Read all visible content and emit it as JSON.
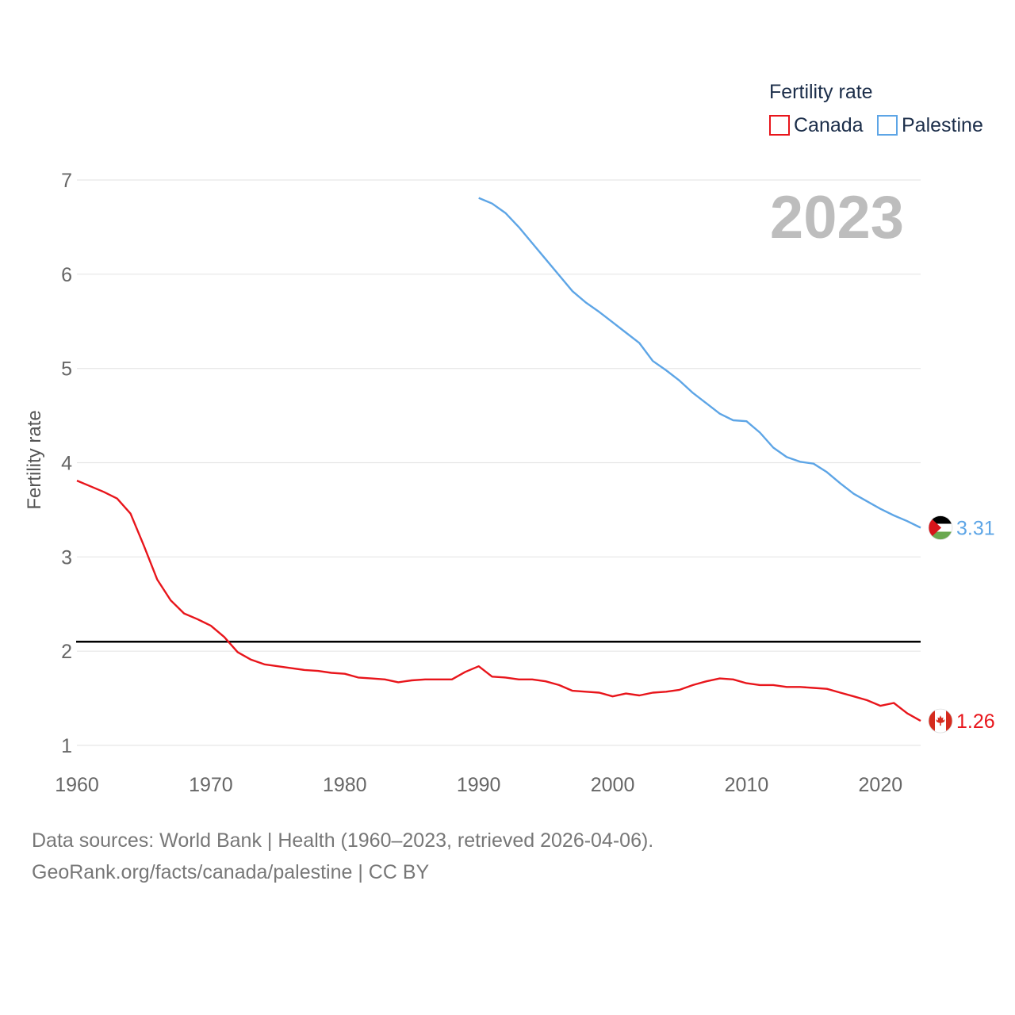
{
  "chart_data": {
    "type": "line",
    "title": "",
    "year_label": "2023",
    "ylabel": "Fertility rate",
    "xlabel": "",
    "xlim": [
      1960,
      2023
    ],
    "ylim": [
      1,
      7
    ],
    "x_ticks": [
      "1960",
      "1970",
      "1980",
      "1990",
      "2000",
      "2010",
      "2020"
    ],
    "y_ticks": [
      "1",
      "2",
      "3",
      "4",
      "5",
      "6",
      "7"
    ],
    "grid": true,
    "legend": {
      "title": "Fertility rate",
      "placement": "top-right",
      "entries": [
        "Canada",
        "Palestine"
      ]
    },
    "reference_line": {
      "value": 2.1,
      "color": "#000000"
    },
    "series": [
      {
        "name": "Canada",
        "color": "#e8151b",
        "end_label": "1.26",
        "flag": "canada-flag",
        "start_year": 1960,
        "values": [
          3.81,
          3.75,
          3.69,
          3.62,
          3.46,
          3.12,
          2.76,
          2.54,
          2.4,
          2.34,
          2.27,
          2.15,
          1.99,
          1.91,
          1.86,
          1.84,
          1.82,
          1.8,
          1.79,
          1.77,
          1.76,
          1.72,
          1.71,
          1.7,
          1.67,
          1.69,
          1.7,
          1.7,
          1.7,
          1.78,
          1.84,
          1.73,
          1.72,
          1.7,
          1.7,
          1.68,
          1.64,
          1.58,
          1.57,
          1.56,
          1.52,
          1.55,
          1.53,
          1.56,
          1.57,
          1.59,
          1.64,
          1.68,
          1.71,
          1.7,
          1.66,
          1.64,
          1.64,
          1.62,
          1.62,
          1.61,
          1.6,
          1.56,
          1.52,
          1.48,
          1.42,
          1.45,
          1.34,
          1.26
        ]
      },
      {
        "name": "Palestine",
        "color": "#5da5e6",
        "end_label": "3.31",
        "flag": "palestine-flag",
        "start_year": 1990,
        "values": [
          6.81,
          6.75,
          6.65,
          6.5,
          6.33,
          6.16,
          5.99,
          5.82,
          5.7,
          5.6,
          5.49,
          5.38,
          5.27,
          5.08,
          4.98,
          4.87,
          4.74,
          4.63,
          4.52,
          4.45,
          4.44,
          4.32,
          4.16,
          4.06,
          4.01,
          3.99,
          3.9,
          3.78,
          3.67,
          3.59,
          3.51,
          3.44,
          3.38,
          3.31
        ]
      }
    ]
  },
  "footer": {
    "line1": "Data sources: World Bank | Health (1960–2023, retrieved 2026-04-06).",
    "line2": "GeoRank.org/facts/canada/palestine | CC BY"
  }
}
